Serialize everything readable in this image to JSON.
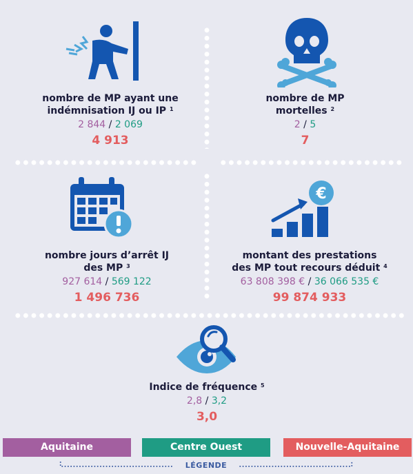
{
  "stats": [
    {
      "label_line1": "nombre de MP ayant une",
      "label_line2": "indémnisation IJ ou IP",
      "note": "1",
      "aquitaine": "2 844",
      "centre_ouest": "2 069",
      "total": "4 913",
      "icon": "injured-worker-back-pain-icon"
    },
    {
      "label_line1": "nombre de MP",
      "label_line2": "mortelles",
      "note": "2",
      "aquitaine": "2",
      "centre_ouest": "5",
      "total": "7",
      "icon": "skull-crossbones-icon"
    },
    {
      "label_line1": "nombre jours d’arrêt IJ",
      "label_line2": "des MP",
      "note": "3",
      "aquitaine": "927 614",
      "centre_ouest": "569 122",
      "total": "1 496 736",
      "icon": "calendar-alert-icon"
    },
    {
      "label_line1": "montant des prestations",
      "label_line2": "des MP tout recours déduit",
      "note": "4",
      "aquitaine": "63 808 398 €",
      "centre_ouest": "36 066 535 €",
      "total": "99 874 933",
      "icon": "rising-bars-euro-icon"
    },
    {
      "label_line1": "Indice de fréquence",
      "label_line2": "",
      "note": "5",
      "aquitaine": "2,8",
      "centre_ouest": "3,2",
      "total": "3,0",
      "icon": "eye-magnifier-icon"
    }
  ],
  "separator": "/",
  "legend": {
    "title": "LÉGENDE",
    "items": [
      {
        "label": "Aquitaine",
        "color": "#a35fa0"
      },
      {
        "label": "Centre Ouest",
        "color": "#1f9c84"
      },
      {
        "label": "Nouvelle-Aquitaine",
        "color": "#e35d5f"
      }
    ]
  },
  "colors": {
    "icon_blue": "#1456b0",
    "icon_light": "#4fa6d8",
    "background": "#e8e9f1"
  }
}
